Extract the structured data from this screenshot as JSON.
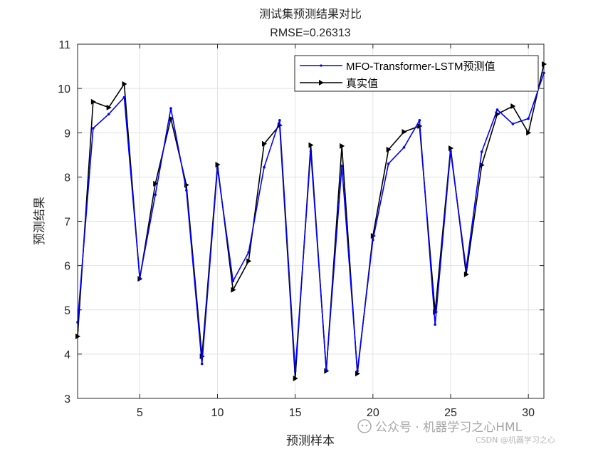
{
  "chart_data": {
    "type": "line",
    "title": "测试集预测结果对比",
    "subtitle": "RMSE=0.26313",
    "xlabel": "预测样本",
    "ylabel": "预测结果",
    "xlim": [
      1,
      31
    ],
    "ylim": [
      3,
      11
    ],
    "xticks": [
      5,
      10,
      15,
      20,
      25,
      30
    ],
    "yticks": [
      3,
      4,
      5,
      6,
      7,
      8,
      9,
      10,
      11
    ],
    "grid": true,
    "legend_position": "top-right",
    "x": [
      1,
      2,
      3,
      4,
      5,
      6,
      7,
      8,
      9,
      10,
      11,
      12,
      13,
      14,
      15,
      16,
      17,
      18,
      19,
      20,
      21,
      22,
      23,
      24,
      25,
      26,
      27,
      28,
      29,
      30,
      31
    ],
    "series": [
      {
        "name": "MFO-Transformer-LSTM预测值",
        "color": "#0000ff",
        "marker": "dot",
        "values": [
          4.72,
          9.1,
          9.42,
          9.8,
          5.72,
          7.6,
          9.55,
          7.7,
          3.78,
          8.2,
          5.65,
          6.3,
          8.22,
          9.28,
          3.62,
          8.58,
          3.65,
          8.25,
          3.62,
          6.58,
          8.3,
          8.67,
          9.28,
          4.67,
          8.58,
          5.92,
          8.57,
          9.52,
          9.2,
          9.32,
          10.35
        ]
      },
      {
        "name": "真实值",
        "color": "#000000",
        "marker": "triangle-right",
        "values": [
          4.4,
          9.7,
          9.57,
          10.1,
          5.7,
          7.85,
          9.32,
          7.82,
          3.95,
          8.28,
          5.45,
          6.1,
          8.75,
          9.17,
          3.45,
          8.72,
          3.62,
          8.7,
          3.56,
          6.67,
          8.62,
          9.02,
          9.15,
          4.95,
          8.65,
          5.8,
          8.27,
          9.42,
          9.6,
          9.0,
          10.55
        ]
      }
    ]
  },
  "watermark": {
    "line1": "公众号 · 机器学习之心HML",
    "line2": "CSDN @机器学习之心"
  }
}
